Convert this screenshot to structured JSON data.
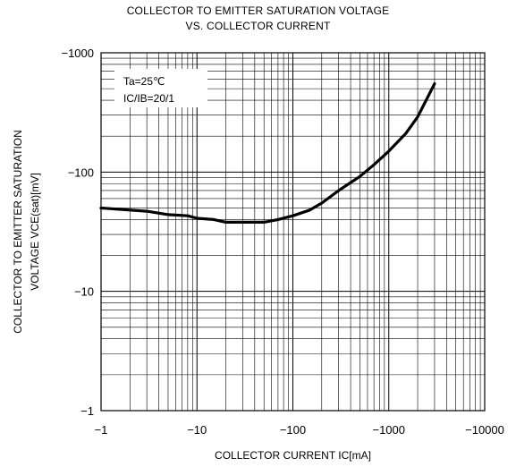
{
  "chart_data": {
    "type": "line",
    "title_lines": [
      "COLLECTOR TO EMITTER SATURATION VOLTAGE",
      "VS. COLLECTOR CURRENT"
    ],
    "xlabel": "COLLECTOR CURRENT IC[mA]",
    "ylabel_lines": [
      "COLLECTOR TO EMITTER SATURATION",
      "VOLTAGE VCE(sat)[mV]"
    ],
    "x_scale": "log",
    "y_scale": "log",
    "x_magnitude_range": [
      1,
      10000
    ],
    "y_magnitude_range": [
      1,
      1000
    ],
    "x_tick_labels": [
      "−1",
      "−10",
      "−100",
      "−1000",
      "−10000"
    ],
    "y_tick_labels": [
      "−1000",
      "−100",
      "−10",
      "−1"
    ],
    "grid": true,
    "legend_placement": "top-left",
    "annotations": [
      "Ta=25℃",
      "IC/IB=20/1"
    ],
    "series": [
      {
        "x": [
          -1,
          -2,
          -3,
          -5,
          -8,
          -10,
          -15,
          -20,
          -30,
          -50,
          -70,
          -100,
          -150,
          -200,
          -300,
          -500,
          -700,
          -1000,
          -1500,
          -2000,
          -3000
        ],
        "y": [
          -50,
          -48,
          -47,
          -44,
          -43,
          -41,
          -40,
          -38,
          -38,
          -38,
          -40,
          -43,
          -48,
          -55,
          -70,
          -92,
          -115,
          -150,
          -210,
          -290,
          -550
        ]
      }
    ]
  }
}
